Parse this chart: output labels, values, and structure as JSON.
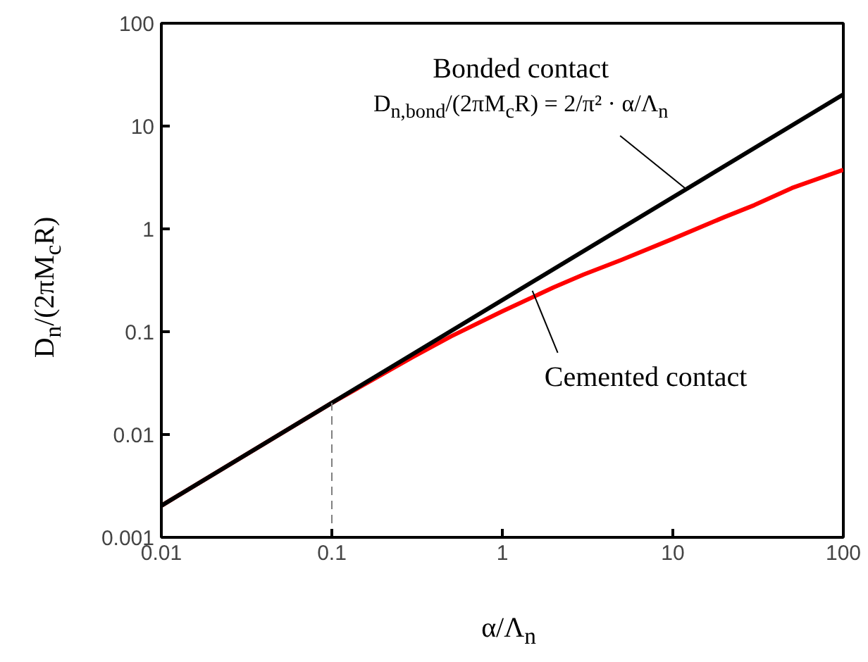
{
  "chart_data": {
    "type": "line",
    "xlabel": "α/Λ$_{n}$",
    "ylabel": "D$_{n}$/(2πM$_{c}$R)",
    "log": "xy",
    "grid": false,
    "marker": "none",
    "xlim": [
      0.01,
      100
    ],
    "ylim": [
      0.001,
      100
    ],
    "xticks": [
      0.01,
      0.1,
      1,
      10,
      100
    ],
    "yticks": [
      0.001,
      0.01,
      0.1,
      1,
      10,
      100
    ],
    "series": [
      {
        "color": "#ff0000",
        "x": [
          0.01,
          0.1,
          0.3,
          0.5,
          1,
          2,
          3,
          5,
          10,
          20,
          30,
          50,
          100
        ],
        "values": [
          0.00203,
          0.0203,
          0.057,
          0.09,
          0.158,
          0.27,
          0.36,
          0.5,
          0.8,
          1.3,
          1.7,
          2.5,
          3.76
        ]
      },
      {
        "color": "#000000",
        "x": [
          0.01,
          100
        ],
        "values": [
          0.00203,
          20.3
        ]
      },
      {
        "color": "#808080",
        "line_style": "dashed",
        "x": [
          0.1,
          0.1
        ],
        "values": [
          0.001,
          0.0203
        ]
      }
    ],
    "annotations": [
      "Bonded contact",
      {
        "text": "D$_{n,bond}$/(2πM$_{c}$R) = 2/π² · α/Λ$_{n}$",
        "x": 12,
        "y": 2.43
      },
      {
        "text": "Cemented contact",
        "x": 1.5,
        "y": 0.25
      }
    ]
  }
}
